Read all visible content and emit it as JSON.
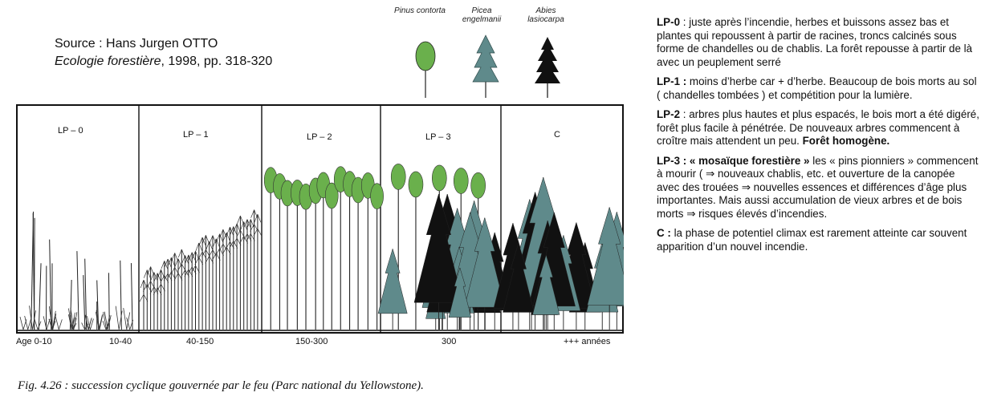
{
  "source": {
    "line1": "Source : Hans Jurgen OTTO",
    "title": "Ecologie forestière",
    "rest": ", 1998, pp. 318-320"
  },
  "species": [
    {
      "name_line1": "Pinus contorta",
      "name_line2": "",
      "color": "#6ab04c"
    },
    {
      "name_line1": "Picea",
      "name_line2": "engelmanii",
      "color": "#5f8a8b"
    },
    {
      "name_line1": "Abies",
      "name_line2": "lasiocarpa",
      "color": "#111111"
    }
  ],
  "stages": [
    {
      "label": "LP – 0"
    },
    {
      "label": "LP – 1"
    },
    {
      "label": "LP – 2"
    },
    {
      "label": "LP – 3"
    },
    {
      "label": "C"
    }
  ],
  "ages": [
    "Age 0-10",
    "10-40",
    "40-150",
    "150-300",
    "300",
    "+++ années"
  ],
  "caption": "Fig. 4.26 : succession cyclique gouvernée par le feu (Parc national du Yellowstone).",
  "notes": [
    {
      "head": "LP-0",
      "head_suffix": " :",
      "text": "  juste après l’incendie, herbes et buissons assez bas et plantes qui repoussent à partir de racines, troncs calcinés sous forme de chandelles ou de chablis. La forêt repousse à partir de là avec un peuplement serré",
      "tail_bold": ""
    },
    {
      "head": "LP-1 :",
      "head_suffix": "",
      "text": " moins d’herbe car + d’herbe. Beaucoup de bois morts au sol ( chandelles tombées ) et compétition pour la lumière.",
      "tail_bold": ""
    },
    {
      "head": "LP-2",
      "head_suffix": "",
      "text": " : arbres plus hautes et plus espacés, le bois mort a été digéré, forêt plus facile à pénétrée. De nouveaux arbres commencent à croître mais attendent un peu. ",
      "tail_bold": "Forêt homogène."
    },
    {
      "head": "LP-3 : « mosaïque forestière »",
      "head_suffix": "",
      "text": " les « pins pionniers » commencent à mourir ( ⇒ nouveaux chablis, etc. et ouverture de la canopée avec des trouées ⇒ nouvelles essences et différences d’âge plus importantes. Mais aussi accumulation de vieux arbres et de bois morts ⇒ risques élevés d’incendies.",
      "tail_bold": ""
    },
    {
      "head": "C :",
      "head_suffix": "",
      "text": " la phase de potentiel climax est rarement atteinte car souvent apparition d’un nouvel incendie.",
      "tail_bold": ""
    }
  ]
}
